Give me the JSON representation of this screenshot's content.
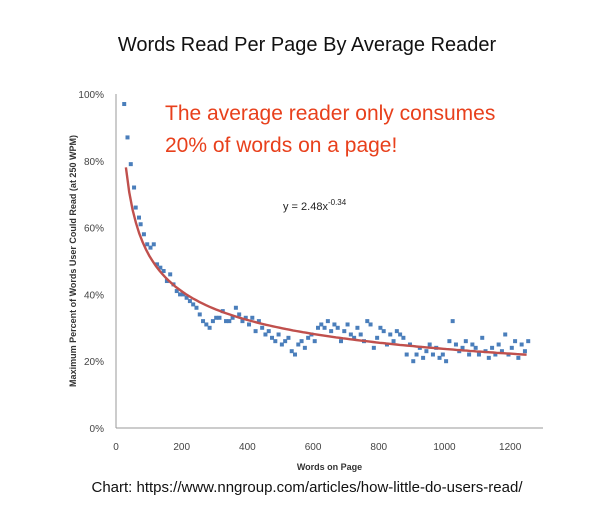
{
  "title": "Words Read Per Page By Average Reader",
  "caption": "Chart: https://www.nngroup.com/articles/how-little-do-users-read/",
  "chart_data": {
    "type": "scatter",
    "xlabel": "Words on Page",
    "ylabel": "Maximum Percent of Words User Could Read (at 250 WPM)",
    "xlim": [
      0,
      1300
    ],
    "ylim": [
      0,
      100
    ],
    "x_ticks": [
      "0",
      "200",
      "400",
      "600",
      "800",
      "1000",
      "1200"
    ],
    "y_ticks": [
      "0%",
      "20%",
      "40%",
      "60%",
      "80%",
      "100%"
    ],
    "grid": false,
    "annotation": {
      "lines": [
        "The average reader only consumes",
        "20% of words on a page!"
      ],
      "color": "#e8401c"
    },
    "equation": {
      "base": "y = 2.48x",
      "exponent": "-0.34"
    },
    "point_color": "#4a7ebb",
    "trend_color": "#c0504d",
    "trendline": {
      "type": "power",
      "coefficient": 2.48,
      "exponent": -0.34,
      "x_range": [
        30,
        1250
      ]
    },
    "points": [
      [
        25,
        97
      ],
      [
        35,
        87
      ],
      [
        45,
        79
      ],
      [
        55,
        72
      ],
      [
        60,
        66
      ],
      [
        70,
        63
      ],
      [
        75,
        61
      ],
      [
        85,
        58
      ],
      [
        95,
        55
      ],
      [
        105,
        54
      ],
      [
        115,
        55
      ],
      [
        125,
        49
      ],
      [
        135,
        48
      ],
      [
        145,
        47
      ],
      [
        155,
        44
      ],
      [
        165,
        46
      ],
      [
        175,
        43
      ],
      [
        185,
        41
      ],
      [
        195,
        40
      ],
      [
        205,
        40
      ],
      [
        215,
        39
      ],
      [
        225,
        38
      ],
      [
        235,
        37
      ],
      [
        245,
        36
      ],
      [
        255,
        34
      ],
      [
        265,
        32
      ],
      [
        275,
        31
      ],
      [
        285,
        30
      ],
      [
        295,
        32
      ],
      [
        305,
        33
      ],
      [
        315,
        33
      ],
      [
        325,
        35
      ],
      [
        335,
        32
      ],
      [
        345,
        32
      ],
      [
        355,
        33
      ],
      [
        365,
        36
      ],
      [
        375,
        34
      ],
      [
        385,
        32
      ],
      [
        395,
        33
      ],
      [
        405,
        31
      ],
      [
        415,
        33
      ],
      [
        425,
        29
      ],
      [
        435,
        32
      ],
      [
        445,
        30
      ],
      [
        455,
        28
      ],
      [
        465,
        29
      ],
      [
        475,
        27
      ],
      [
        485,
        26
      ],
      [
        495,
        28
      ],
      [
        505,
        25
      ],
      [
        515,
        26
      ],
      [
        525,
        27
      ],
      [
        535,
        23
      ],
      [
        545,
        22
      ],
      [
        555,
        25
      ],
      [
        565,
        26
      ],
      [
        575,
        24
      ],
      [
        585,
        27
      ],
      [
        595,
        28
      ],
      [
        605,
        26
      ],
      [
        615,
        30
      ],
      [
        625,
        31
      ],
      [
        635,
        30
      ],
      [
        645,
        32
      ],
      [
        655,
        29
      ],
      [
        665,
        31
      ],
      [
        675,
        30
      ],
      [
        685,
        26
      ],
      [
        695,
        29
      ],
      [
        705,
        31
      ],
      [
        715,
        28
      ],
      [
        725,
        27
      ],
      [
        735,
        30
      ],
      [
        745,
        28
      ],
      [
        755,
        26
      ],
      [
        765,
        32
      ],
      [
        775,
        31
      ],
      [
        785,
        24
      ],
      [
        795,
        27
      ],
      [
        805,
        30
      ],
      [
        815,
        29
      ],
      [
        825,
        25
      ],
      [
        835,
        28
      ],
      [
        845,
        26
      ],
      [
        855,
        29
      ],
      [
        865,
        28
      ],
      [
        875,
        27
      ],
      [
        885,
        22
      ],
      [
        895,
        25
      ],
      [
        905,
        20
      ],
      [
        915,
        22
      ],
      [
        925,
        24
      ],
      [
        935,
        21
      ],
      [
        945,
        23
      ],
      [
        955,
        25
      ],
      [
        965,
        22
      ],
      [
        975,
        24
      ],
      [
        985,
        21
      ],
      [
        995,
        22
      ],
      [
        1005,
        20
      ],
      [
        1015,
        26
      ],
      [
        1025,
        32
      ],
      [
        1035,
        25
      ],
      [
        1045,
        23
      ],
      [
        1055,
        24
      ],
      [
        1065,
        26
      ],
      [
        1075,
        22
      ],
      [
        1085,
        25
      ],
      [
        1095,
        24
      ],
      [
        1105,
        22
      ],
      [
        1115,
        27
      ],
      [
        1125,
        23
      ],
      [
        1135,
        21
      ],
      [
        1145,
        24
      ],
      [
        1155,
        22
      ],
      [
        1165,
        25
      ],
      [
        1175,
        23
      ],
      [
        1185,
        28
      ],
      [
        1195,
        22
      ],
      [
        1205,
        24
      ],
      [
        1215,
        26
      ],
      [
        1225,
        21
      ],
      [
        1235,
        25
      ],
      [
        1245,
        23
      ],
      [
        1255,
        26
      ]
    ]
  }
}
